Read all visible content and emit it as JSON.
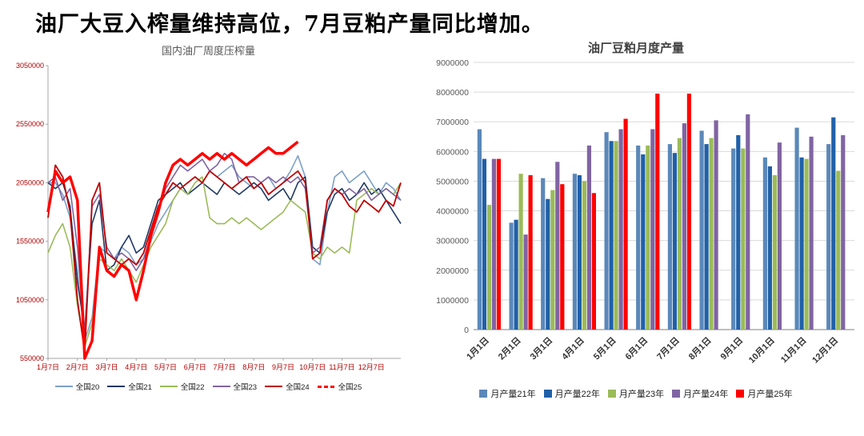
{
  "page_title": "油厂大豆入榨量维持高位，7月豆粕产量同比增加。",
  "chart_data": [
    {
      "type": "line",
      "title": "国内油厂周度压榨量",
      "xlabel": "",
      "ylabel": "",
      "ylim": [
        550000,
        3050000
      ],
      "y_ticks": [
        550000,
        1050000,
        1550000,
        2050000,
        2550000,
        3050000
      ],
      "grid": false,
      "legend_position": "bottom",
      "x_tick_labels": [
        "1月7日",
        "2月7日",
        "3月7日",
        "4月7日",
        "5月7日",
        "6月7日",
        "7月7日",
        "8月7日",
        "9月7日",
        "10月7日",
        "11月7日",
        "12月7日"
      ],
      "series": [
        {
          "name": "全国20",
          "color": "#7da0c8",
          "width": 1.6,
          "values": [
            2050000,
            2050000,
            1950000,
            1750000,
            1300000,
            700000,
            900000,
            1500000,
            1450000,
            1400000,
            1500000,
            1450000,
            1350000,
            1400000,
            1550000,
            1700000,
            1800000,
            1900000,
            2000000,
            2050000,
            2100000,
            2050000,
            2150000,
            2100000,
            2150000,
            2200000,
            2100000,
            2050000,
            2000000,
            2050000,
            2100000,
            2000000,
            2050000,
            2150000,
            2280000,
            2100000,
            1400000,
            1350000,
            1800000,
            2100000,
            2150000,
            2050000,
            2100000,
            2150000,
            2050000,
            1950000,
            2050000,
            2000000,
            1900000
          ]
        },
        {
          "name": "全国21",
          "color": "#1f3864",
          "width": 1.6,
          "values": [
            2050000,
            2000000,
            2050000,
            1850000,
            1200000,
            800000,
            1700000,
            1900000,
            1300000,
            1350000,
            1500000,
            1600000,
            1450000,
            1500000,
            1700000,
            1900000,
            1950000,
            2000000,
            2050000,
            1950000,
            2000000,
            2050000,
            2000000,
            1950000,
            2050000,
            2000000,
            1950000,
            2000000,
            2050000,
            2000000,
            1900000,
            1950000,
            2000000,
            1900000,
            2050000,
            2100000,
            1500000,
            1450000,
            1800000,
            1950000,
            2000000,
            1900000,
            1950000,
            2050000,
            1950000,
            2000000,
            1900000,
            1800000,
            1700000
          ]
        },
        {
          "name": "全国22",
          "color": "#9bbb59",
          "width": 1.6,
          "values": [
            1450000,
            1600000,
            1700000,
            1500000,
            1000000,
            650000,
            850000,
            1400000,
            1350000,
            1300000,
            1400000,
            1300000,
            1200000,
            1350000,
            1500000,
            1600000,
            1700000,
            1900000,
            2000000,
            1950000,
            2050000,
            2100000,
            1750000,
            1700000,
            1700000,
            1750000,
            1700000,
            1750000,
            1700000,
            1650000,
            1700000,
            1750000,
            1800000,
            1900000,
            1850000,
            1800000,
            1450000,
            1400000,
            1500000,
            1450000,
            1500000,
            1450000,
            1900000,
            1950000,
            2000000,
            1950000,
            2000000,
            1950000,
            2050000
          ]
        },
        {
          "name": "全国23",
          "color": "#8064a2",
          "width": 1.6,
          "values": [
            2050000,
            2100000,
            1900000,
            2000000,
            1500000,
            750000,
            1850000,
            1950000,
            1500000,
            1400000,
            1450000,
            1400000,
            1300000,
            1400000,
            1600000,
            1800000,
            2000000,
            2100000,
            2200000,
            2150000,
            2200000,
            2250000,
            2150000,
            2200000,
            2300000,
            2250000,
            2050000,
            2100000,
            2100000,
            2050000,
            2100000,
            2050000,
            2100000,
            2050000,
            2100000,
            2000000,
            1450000,
            1500000,
            1900000,
            2000000,
            1950000,
            2000000,
            1950000,
            2000000,
            1900000,
            1950000,
            2000000,
            1950000,
            1900000
          ]
        },
        {
          "name": "全国24",
          "color": "#c00000",
          "width": 1.8,
          "values": [
            1750000,
            2200000,
            2100000,
            1800000,
            1050000,
            600000,
            1900000,
            2050000,
            1450000,
            1400000,
            1350000,
            1400000,
            1350000,
            1450000,
            1650000,
            1850000,
            1950000,
            2050000,
            2000000,
            2050000,
            2100000,
            2050000,
            2150000,
            2100000,
            2050000,
            2000000,
            2050000,
            2100000,
            2000000,
            2050000,
            1950000,
            2000000,
            2050000,
            2100000,
            2150000,
            2050000,
            1400000,
            1450000,
            1900000,
            2000000,
            1950000,
            1850000,
            1800000,
            1900000,
            1850000,
            1800000,
            1900000,
            1850000,
            2050000
          ]
        },
        {
          "name": "全国25",
          "color": "#ff0000",
          "width": 3.5,
          "dash": true,
          "values": [
            1800000,
            2150000,
            2050000,
            2100000,
            1900000,
            550000,
            700000,
            1500000,
            1300000,
            1250000,
            1350000,
            1300000,
            1050000,
            1300000,
            1600000,
            1800000,
            2050000,
            2200000,
            2250000,
            2200000,
            2250000,
            2300000,
            2250000,
            2300000,
            2250000,
            2300000,
            2250000,
            2200000,
            2250000,
            2300000,
            2350000,
            2300000,
            2300000,
            2350000,
            2400000,
            null,
            null,
            null,
            null,
            null,
            null,
            null,
            null,
            null,
            null,
            null,
            null,
            null,
            null
          ]
        }
      ]
    },
    {
      "type": "bar",
      "title": "油厂豆粕月度产量",
      "xlabel": "",
      "ylabel": "",
      "ylim": [
        0,
        9000000
      ],
      "y_ticks": [
        0,
        1000000,
        2000000,
        3000000,
        4000000,
        5000000,
        6000000,
        7000000,
        8000000,
        9000000
      ],
      "grid": true,
      "legend_position": "bottom",
      "categories": [
        "1月1日",
        "2月1日",
        "3月1日",
        "4月1日",
        "5月1日",
        "6月1日",
        "7月1日",
        "8月1日",
        "9月1日",
        "10月1日",
        "11月1日",
        "12月1日"
      ],
      "series": [
        {
          "name": "月产量21年",
          "color": "#5b88b9",
          "values": [
            6750000,
            3600000,
            5100000,
            5250000,
            6650000,
            6200000,
            6250000,
            6700000,
            6100000,
            5800000,
            6800000,
            6250000
          ]
        },
        {
          "name": "月产量22年",
          "color": "#2060a8",
          "values": [
            5750000,
            3700000,
            4400000,
            5200000,
            6350000,
            5900000,
            5950000,
            6250000,
            6550000,
            5500000,
            5800000,
            7150000
          ]
        },
        {
          "name": "月产量23年",
          "color": "#9bbb59",
          "values": [
            4200000,
            5250000,
            4700000,
            5000000,
            6350000,
            6200000,
            6450000,
            6450000,
            6100000,
            5200000,
            5750000,
            5350000
          ]
        },
        {
          "name": "月产量24年",
          "color": "#8064a2",
          "values": [
            5750000,
            3200000,
            5650000,
            6200000,
            6750000,
            6750000,
            6950000,
            7050000,
            7250000,
            6300000,
            6500000,
            6550000
          ]
        },
        {
          "name": "月产量25年",
          "color": "#ff0000",
          "values": [
            5750000,
            5200000,
            4900000,
            4600000,
            7100000,
            7950000,
            7950000,
            null,
            null,
            null,
            null,
            null
          ]
        }
      ]
    }
  ]
}
